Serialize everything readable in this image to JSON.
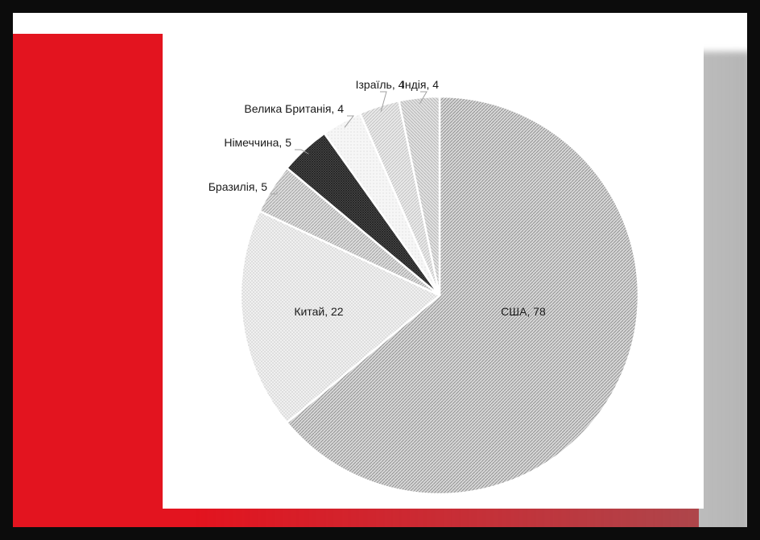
{
  "chart_data": {
    "type": "pie",
    "title": "",
    "categories": [
      "США",
      "Китай",
      "Бразилія",
      "Німеччина",
      "Велика Британія",
      "Ізраїль",
      "Індія"
    ],
    "values": [
      78,
      22,
      5,
      5,
      4,
      4,
      4
    ],
    "data_labels": [
      "США, 78",
      "Китай, 22",
      "Бразилія, 5",
      "Німеччина, 5",
      "Велика Британія, 4",
      "Ізраїль, 4",
      "Індія, 4"
    ],
    "slice_colors": [
      "#bdbdbd",
      "#e6e6e6",
      "#c9c9c9",
      "#4a4a4a",
      "#f2f2f2",
      "#dedede",
      "#d2d2d2"
    ],
    "slice_patterns": [
      "dense-diagonal",
      "dotted",
      "diagonal",
      "crosshatch",
      "fine-dots",
      "light-diagonal",
      "hatch"
    ],
    "legend": "none",
    "start_angle": "top",
    "direction": "clockwise"
  },
  "colors": {
    "frame": "#0c0c0c",
    "accent_red": "#e3141f",
    "panel": "#ffffff"
  }
}
